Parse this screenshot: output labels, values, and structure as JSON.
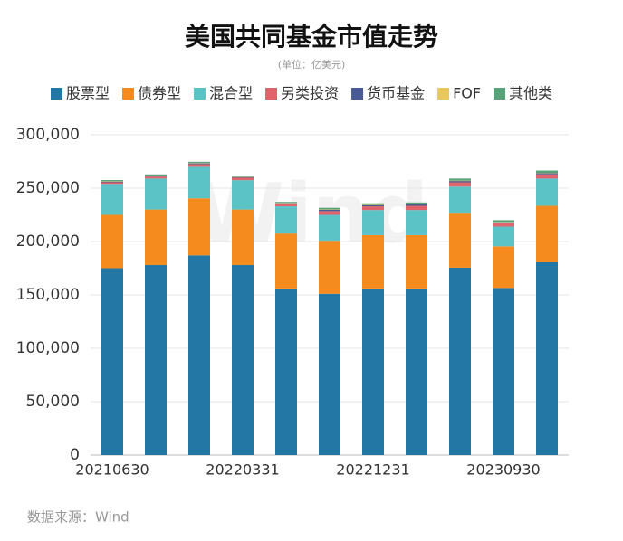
{
  "chart_data": {
    "type": "stacked_bar",
    "title": "美国共同基金市值走势",
    "subtitle": "(单位：亿美元)",
    "source": "数据来源：Wind",
    "watermark": "Wind",
    "categories": [
      "20210630",
      null,
      null,
      "20220331",
      null,
      null,
      "20221231",
      null,
      null,
      "20230930",
      null
    ],
    "series": [
      {
        "name": "股票型",
        "color": "#2277a4",
        "values": [
          175000,
          178000,
          187000,
          178000,
          156000,
          151000,
          156000,
          156000,
          175500,
          156500,
          180500
        ]
      },
      {
        "name": "债券型",
        "color": "#f58b1f",
        "values": [
          50000,
          52000,
          53500,
          52000,
          51500,
          49700,
          50000,
          50000,
          51500,
          39000,
          53000
        ]
      },
      {
        "name": "混合型",
        "color": "#5bc3c6",
        "values": [
          29000,
          29000,
          29500,
          27500,
          25500,
          24300,
          23500,
          23500,
          24500,
          18500,
          25500
        ]
      },
      {
        "name": "另类投资",
        "color": "#e0626a",
        "values": [
          1500,
          1800,
          2500,
          2300,
          2200,
          3500,
          3500,
          4000,
          4000,
          3000,
          4000
        ]
      },
      {
        "name": "货币基金",
        "color": "#4a5a94",
        "values": [
          600,
          600,
          700,
          600,
          600,
          1300,
          1000,
          1300,
          1200,
          1000,
          1000
        ]
      },
      {
        "name": "FOF",
        "color": "#e8c85a",
        "values": [
          300,
          300,
          300,
          300,
          300,
          300,
          300,
          300,
          300,
          300,
          300
        ]
      },
      {
        "name": "其他类",
        "color": "#5aa27a",
        "values": [
          1200,
          1200,
          1200,
          1000,
          1000,
          1500,
          1500,
          1500,
          2000,
          1700,
          2200
        ]
      }
    ],
    "ylim": [
      0,
      300000
    ],
    "yticks": [
      0,
      {
        "value": 50000,
        "label": "50,000"
      },
      {
        "value": 100000,
        "label": "100,000"
      },
      {
        "value": 150000,
        "label": "150,000"
      },
      {
        "value": 200000,
        "label": "200,000"
      },
      {
        "value": 250000,
        "label": "250,000"
      },
      {
        "value": 300000,
        "label": "300,000"
      }
    ],
    "grid": true,
    "legend": "top"
  }
}
